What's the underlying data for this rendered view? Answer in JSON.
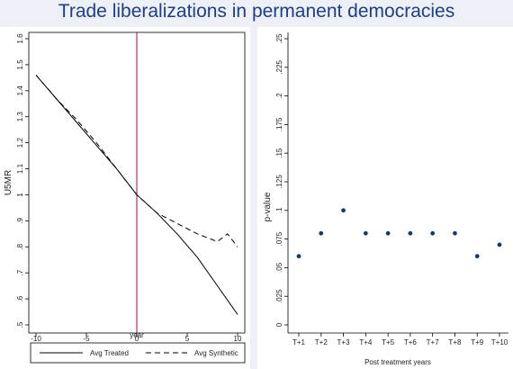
{
  "page": {
    "title": "Trade liberalizations in permanent democracies"
  },
  "chart_data": [
    {
      "type": "line",
      "xlabel": "year",
      "ylabel": "U5MR",
      "xlim": [
        -10,
        10
      ],
      "ylim": [
        0.5,
        1.6
      ],
      "x_ticks": [
        "-10",
        "-5",
        "0",
        "5",
        "10"
      ],
      "y_ticks": [
        ".5",
        ".6",
        ".7",
        ".8",
        ".9",
        "1",
        "1.1",
        "1.2",
        "1.3",
        "1.4",
        "1.5",
        "1.6"
      ],
      "vline_x": 0,
      "legend": "bottom",
      "series": [
        {
          "name": "Avg Treated",
          "style": "solid",
          "x": [
            -10,
            -8,
            -6,
            -4,
            -2,
            0,
            2,
            4,
            6,
            8,
            10
          ],
          "y": [
            1.46,
            1.37,
            1.28,
            1.19,
            1.1,
            1.0,
            0.93,
            0.85,
            0.76,
            0.65,
            0.54
          ]
        },
        {
          "name": "Avg Synthetic",
          "style": "dashed",
          "x": [
            -10,
            -8,
            -6,
            -4,
            -2,
            0,
            2,
            4,
            6,
            8,
            9,
            10
          ],
          "y": [
            1.46,
            1.37,
            1.29,
            1.2,
            1.1,
            1.0,
            0.93,
            0.89,
            0.85,
            0.82,
            0.85,
            0.8
          ]
        }
      ],
      "colors": {
        "treated": "#000000",
        "synthetic": "#000000",
        "vline": "#b0004e"
      }
    },
    {
      "type": "scatter",
      "xlabel": "Post treatment years",
      "ylabel": "p-value",
      "ylim": [
        0,
        0.25
      ],
      "categories": [
        "T+1",
        "T+2",
        "T+3",
        "T+4",
        "T+5",
        "T+6",
        "T+7",
        "T+8",
        "T+9",
        "T+10"
      ],
      "values": [
        0.06,
        0.08,
        0.1,
        0.08,
        0.08,
        0.08,
        0.08,
        0.08,
        0.06,
        0.07
      ],
      "y_ticks": [
        "0",
        ".025",
        ".05",
        ".075",
        ".1",
        ".125",
        ".15",
        ".175",
        ".2",
        ".225",
        ".25"
      ],
      "colors": {
        "marker": "#1a3a6b"
      }
    }
  ]
}
